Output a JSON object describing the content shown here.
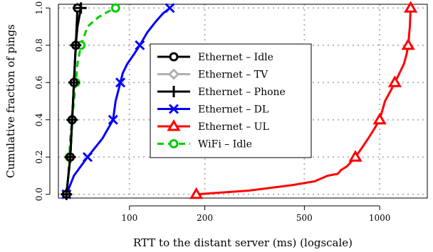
{
  "chart_data": {
    "type": "line",
    "title": "",
    "xlabel": "RTT to the distant server (ms) (logscale)",
    "ylabel": "Cumulative fraction of pings",
    "x_scale": "log",
    "xlim": [
      52,
      1550
    ],
    "ylim": [
      -0.02,
      1.02
    ],
    "x_ticks": [
      100,
      200,
      500,
      1000
    ],
    "x_tick_labels": [
      "100",
      "200",
      "500",
      "1000"
    ],
    "y_ticks": [
      0.0,
      0.2,
      0.4,
      0.6,
      0.8,
      1.0
    ],
    "y_tick_labels": [
      "0.0",
      "0.2",
      "0.4",
      "0.6",
      "0.8",
      "1.0"
    ],
    "grid": true,
    "legend_position": "center",
    "series": [
      {
        "name": "Ethernet – Idle",
        "color": "#000000",
        "line": "solid",
        "marker": "circle",
        "x": [
          56,
          57,
          58,
          58.5,
          59,
          59.5,
          60,
          60.5,
          61,
          61.5,
          62
        ],
        "y": [
          0.0,
          0.1,
          0.2,
          0.3,
          0.4,
          0.5,
          0.6,
          0.7,
          0.8,
          0.9,
          1.0
        ],
        "marker_y": [
          0.0,
          0.2,
          0.4,
          0.6,
          0.8,
          1.0
        ]
      },
      {
        "name": "Ethernet – TV",
        "color": "#b0b0b0",
        "line": "solid",
        "marker": "diamond",
        "x": [
          56,
          57,
          58,
          58.5,
          59,
          59.5,
          60,
          60.5,
          61,
          61.5,
          62
        ],
        "y": [
          0.0,
          0.1,
          0.2,
          0.3,
          0.4,
          0.5,
          0.6,
          0.7,
          0.8,
          0.9,
          1.0
        ],
        "marker_y": [
          0.0,
          0.2,
          0.4,
          0.6,
          0.8,
          1.0
        ]
      },
      {
        "name": "Ethernet – Phone",
        "color": "#000000",
        "line": "solid",
        "marker": "plus",
        "x": [
          56,
          57,
          58,
          58.5,
          59,
          59.5,
          60,
          60.5,
          61,
          62,
          64
        ],
        "y": [
          0.0,
          0.1,
          0.2,
          0.3,
          0.4,
          0.5,
          0.6,
          0.7,
          0.8,
          0.9,
          1.0
        ],
        "marker_y": [
          0.0,
          0.2,
          0.4,
          0.6,
          0.8,
          1.0
        ]
      },
      {
        "name": "Ethernet – DL",
        "color": "#0000ff",
        "line": "solid",
        "marker": "cross",
        "x": [
          56,
          60,
          68,
          78,
          86,
          88,
          92,
          94,
          98,
          104,
          110,
          118,
          128,
          136,
          145
        ],
        "y": [
          0.0,
          0.1,
          0.2,
          0.3,
          0.4,
          0.5,
          0.6,
          0.65,
          0.7,
          0.75,
          0.8,
          0.87,
          0.93,
          0.97,
          1.0
        ],
        "marker_y": [
          0.0,
          0.2,
          0.4,
          0.6,
          0.8,
          1.0
        ]
      },
      {
        "name": "Ethernet – UL",
        "color": "#ff0000",
        "line": "solid",
        "marker": "triangle",
        "x": [
          185,
          300,
          450,
          550,
          620,
          680,
          700,
          740,
          800,
          850,
          900,
          950,
          1000,
          1050,
          1100,
          1150,
          1200,
          1250,
          1280,
          1300,
          1310,
          1320,
          1330
        ],
        "y": [
          0.0,
          0.02,
          0.05,
          0.07,
          0.1,
          0.11,
          0.13,
          0.15,
          0.2,
          0.25,
          0.3,
          0.35,
          0.4,
          0.5,
          0.55,
          0.6,
          0.65,
          0.7,
          0.75,
          0.8,
          0.85,
          0.9,
          1.0
        ],
        "marker_y": [
          0.0,
          0.2,
          0.4,
          0.6,
          0.8,
          1.0
        ]
      },
      {
        "name": "WiFi – Idle",
        "color": "#00cc00",
        "line": "dashed",
        "marker": "circle",
        "x": [
          56,
          57,
          57.5,
          58,
          59,
          60,
          61,
          62,
          64,
          68,
          75,
          82,
          88
        ],
        "y": [
          0.0,
          0.1,
          0.2,
          0.3,
          0.4,
          0.5,
          0.6,
          0.7,
          0.8,
          0.9,
          0.95,
          0.98,
          1.0
        ],
        "marker_y": [
          0.0,
          0.2,
          0.4,
          0.6,
          0.8,
          1.0
        ]
      }
    ]
  }
}
